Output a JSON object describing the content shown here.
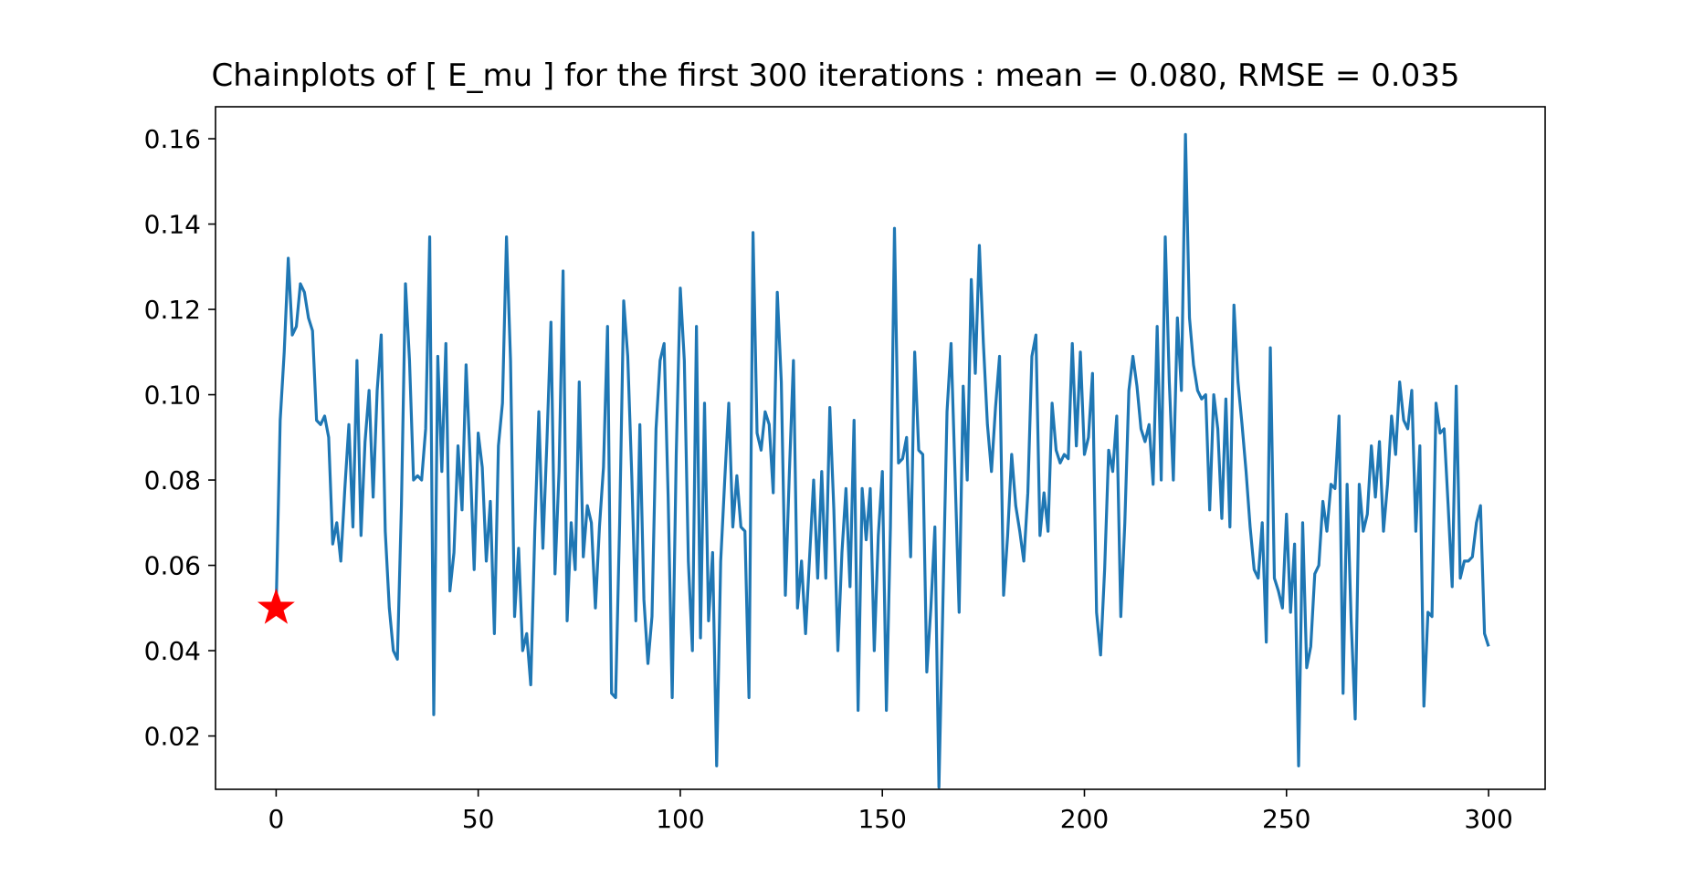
{
  "chart_data": {
    "type": "line",
    "title": "Chainplots of [ E_mu ] for the first 300 iterations : mean = 0.080, RMSE = 0.035",
    "xlabel": "",
    "ylabel": "",
    "xlim": [
      -15,
      314
    ],
    "ylim": [
      0.0075,
      0.1675
    ],
    "xticks": [
      0,
      50,
      100,
      150,
      200,
      250,
      300
    ],
    "yticks": [
      0.02,
      0.04,
      0.06,
      0.08,
      0.1,
      0.12,
      0.14,
      0.16
    ],
    "xtick_labels": [
      "0",
      "50",
      "100",
      "150",
      "200",
      "250",
      "300"
    ],
    "ytick_labels": [
      "0.02",
      "0.04",
      "0.06",
      "0.08",
      "0.10",
      "0.12",
      "0.14",
      "0.16"
    ],
    "grid": false,
    "series": [
      {
        "color": "#1f77b4",
        "x_start": 0,
        "values": [
          0.05,
          0.094,
          0.11,
          0.132,
          0.114,
          0.116,
          0.126,
          0.124,
          0.118,
          0.115,
          0.094,
          0.093,
          0.095,
          0.09,
          0.065,
          0.07,
          0.061,
          0.078,
          0.093,
          0.069,
          0.108,
          0.067,
          0.089,
          0.101,
          0.076,
          0.101,
          0.114,
          0.068,
          0.05,
          0.04,
          0.038,
          0.074,
          0.126,
          0.108,
          0.08,
          0.081,
          0.08,
          0.092,
          0.137,
          0.025,
          0.109,
          0.082,
          0.112,
          0.054,
          0.063,
          0.088,
          0.073,
          0.107,
          0.085,
          0.059,
          0.091,
          0.083,
          0.061,
          0.075,
          0.044,
          0.088,
          0.098,
          0.137,
          0.108,
          0.048,
          0.064,
          0.04,
          0.044,
          0.032,
          0.068,
          0.096,
          0.064,
          0.089,
          0.117,
          0.058,
          0.082,
          0.129,
          0.047,
          0.07,
          0.059,
          0.103,
          0.062,
          0.074,
          0.07,
          0.05,
          0.069,
          0.083,
          0.116,
          0.03,
          0.029,
          0.07,
          0.122,
          0.109,
          0.081,
          0.047,
          0.093,
          0.052,
          0.037,
          0.048,
          0.092,
          0.108,
          0.112,
          0.076,
          0.029,
          0.086,
          0.125,
          0.108,
          0.061,
          0.04,
          0.116,
          0.043,
          0.098,
          0.047,
          0.063,
          0.013,
          0.061,
          0.08,
          0.098,
          0.069,
          0.081,
          0.069,
          0.068,
          0.029,
          0.138,
          0.091,
          0.087,
          0.096,
          0.093,
          0.077,
          0.124,
          0.103,
          0.053,
          0.082,
          0.108,
          0.05,
          0.061,
          0.044,
          0.062,
          0.08,
          0.057,
          0.082,
          0.057,
          0.097,
          0.073,
          0.04,
          0.063,
          0.078,
          0.055,
          0.094,
          0.026,
          0.078,
          0.066,
          0.078,
          0.04,
          0.067,
          0.082,
          0.026,
          0.069,
          0.139,
          0.084,
          0.085,
          0.09,
          0.062,
          0.11,
          0.087,
          0.086,
          0.035,
          0.05,
          0.069,
          0.008,
          0.052,
          0.096,
          0.112,
          0.081,
          0.049,
          0.102,
          0.08,
          0.127,
          0.105,
          0.135,
          0.112,
          0.093,
          0.082,
          0.097,
          0.109,
          0.053,
          0.067,
          0.086,
          0.074,
          0.068,
          0.061,
          0.077,
          0.109,
          0.114,
          0.067,
          0.077,
          0.068,
          0.098,
          0.087,
          0.084,
          0.086,
          0.085,
          0.112,
          0.088,
          0.11,
          0.086,
          0.09,
          0.105,
          0.049,
          0.039,
          0.059,
          0.087,
          0.082,
          0.095,
          0.048,
          0.07,
          0.101,
          0.109,
          0.102,
          0.092,
          0.089,
          0.093,
          0.079,
          0.116,
          0.08,
          0.137,
          0.103,
          0.08,
          0.118,
          0.101,
          0.161,
          0.118,
          0.107,
          0.101,
          0.099,
          0.1,
          0.073,
          0.1,
          0.092,
          0.071,
          0.099,
          0.069,
          0.121,
          0.103,
          0.093,
          0.082,
          0.069,
          0.059,
          0.057,
          0.07,
          0.042,
          0.111,
          0.057,
          0.054,
          0.05,
          0.072,
          0.049,
          0.065,
          0.013,
          0.07,
          0.036,
          0.041,
          0.058,
          0.06,
          0.075,
          0.068,
          0.079,
          0.078,
          0.095,
          0.03,
          0.079,
          0.047,
          0.024,
          0.079,
          0.068,
          0.072,
          0.088,
          0.076,
          0.089,
          0.068,
          0.079,
          0.095,
          0.086,
          0.103,
          0.094,
          0.092,
          0.101,
          0.068,
          0.088,
          0.027,
          0.049,
          0.048,
          0.098,
          0.091,
          0.092,
          0.074,
          0.055,
          0.102,
          0.057,
          0.061,
          0.061,
          0.062,
          0.07,
          0.074,
          0.044,
          0.041
        ]
      }
    ],
    "markers": [
      {
        "shape": "star",
        "color": "#ff0000",
        "x": 0,
        "y": 0.05
      }
    ]
  }
}
